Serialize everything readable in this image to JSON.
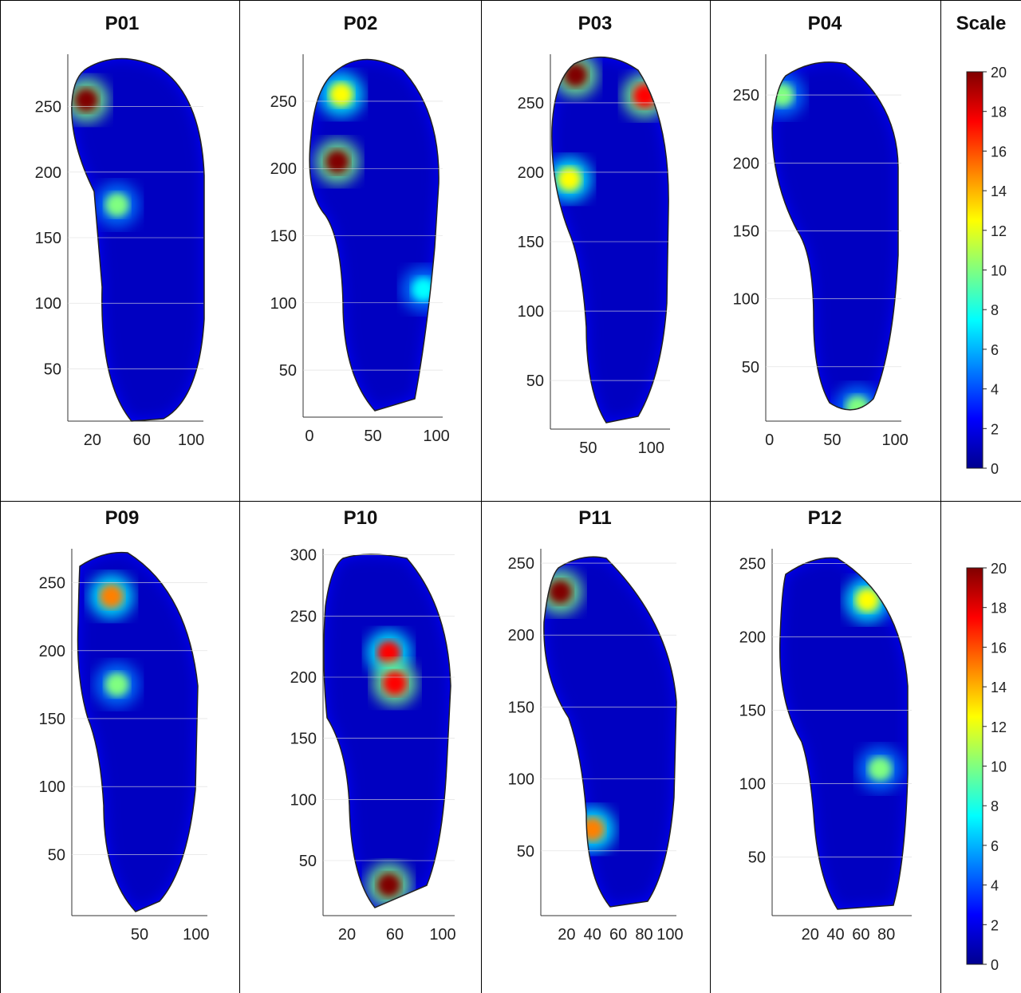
{
  "scale_title": "Scale",
  "colorbar_ticks": [
    "20",
    "18",
    "16",
    "14",
    "12",
    "10",
    "8",
    "6",
    "4",
    "2",
    "0"
  ],
  "colormap": [
    "#00008f",
    "#0000ff",
    "#0080ff",
    "#00ffff",
    "#80ff80",
    "#ffff00",
    "#ff8000",
    "#ff0000",
    "#800000"
  ],
  "chart_data": [
    {
      "type": "heatmap",
      "title": "P01",
      "x_ticks": [
        "20",
        "60",
        "100"
      ],
      "y_ticks": [
        "250",
        "200",
        "150",
        "100",
        "50"
      ],
      "hotspots": [
        {
          "x": 15,
          "y": 255,
          "value": 20
        },
        {
          "x": 40,
          "y": 175,
          "value": 11
        }
      ]
    },
    {
      "type": "heatmap",
      "title": "P02",
      "x_ticks": [
        "0",
        "50",
        "100"
      ],
      "y_ticks": [
        "250",
        "200",
        "150",
        "100",
        "50"
      ],
      "hotspots": [
        {
          "x": 22,
          "y": 205,
          "value": 20
        },
        {
          "x": 25,
          "y": 255,
          "value": 13
        },
        {
          "x": 90,
          "y": 110,
          "value": 8
        }
      ]
    },
    {
      "type": "heatmap",
      "title": "P03",
      "x_ticks": [
        "50",
        "100"
      ],
      "y_ticks": [
        "250",
        "200",
        "150",
        "100",
        "50"
      ],
      "hotspots": [
        {
          "x": 40,
          "y": 270,
          "value": 20
        },
        {
          "x": 95,
          "y": 255,
          "value": 18
        },
        {
          "x": 35,
          "y": 195,
          "value": 13
        }
      ]
    },
    {
      "type": "heatmap",
      "title": "P04",
      "x_ticks": [
        "0",
        "50",
        "100"
      ],
      "y_ticks": [
        "250",
        "200",
        "150",
        "100",
        "50"
      ],
      "hotspots": [
        {
          "x": 10,
          "y": 250,
          "value": 11
        },
        {
          "x": 70,
          "y": 20,
          "value": 11
        }
      ]
    },
    {
      "type": "heatmap",
      "title": "P09",
      "x_ticks": [
        "50",
        "100"
      ],
      "y_ticks": [
        "250",
        "200",
        "150",
        "100",
        "50"
      ],
      "hotspots": [
        {
          "x": 25,
          "y": 240,
          "value": 15
        },
        {
          "x": 30,
          "y": 175,
          "value": 10
        }
      ]
    },
    {
      "type": "heatmap",
      "title": "P10",
      "x_ticks": [
        "20",
        "60",
        "100"
      ],
      "y_ticks": [
        "300",
        "250",
        "200",
        "150",
        "100",
        "50"
      ],
      "hotspots": [
        {
          "x": 55,
          "y": 220,
          "value": 17
        },
        {
          "x": 55,
          "y": 30,
          "value": 20
        },
        {
          "x": 60,
          "y": 195,
          "value": 18
        }
      ]
    },
    {
      "type": "heatmap",
      "title": "P11",
      "x_ticks": [
        "20",
        "40",
        "60",
        "80",
        "100"
      ],
      "y_ticks": [
        "250",
        "200",
        "150",
        "100",
        "50"
      ],
      "hotspots": [
        {
          "x": 15,
          "y": 230,
          "value": 20
        },
        {
          "x": 40,
          "y": 65,
          "value": 16
        }
      ]
    },
    {
      "type": "heatmap",
      "title": "P12",
      "x_ticks": [
        "20",
        "40",
        "60",
        "80"
      ],
      "y_ticks": [
        "250",
        "200",
        "150",
        "100",
        "50"
      ],
      "hotspots": [
        {
          "x": 65,
          "y": 225,
          "value": 13
        },
        {
          "x": 75,
          "y": 110,
          "value": 10
        }
      ]
    }
  ]
}
